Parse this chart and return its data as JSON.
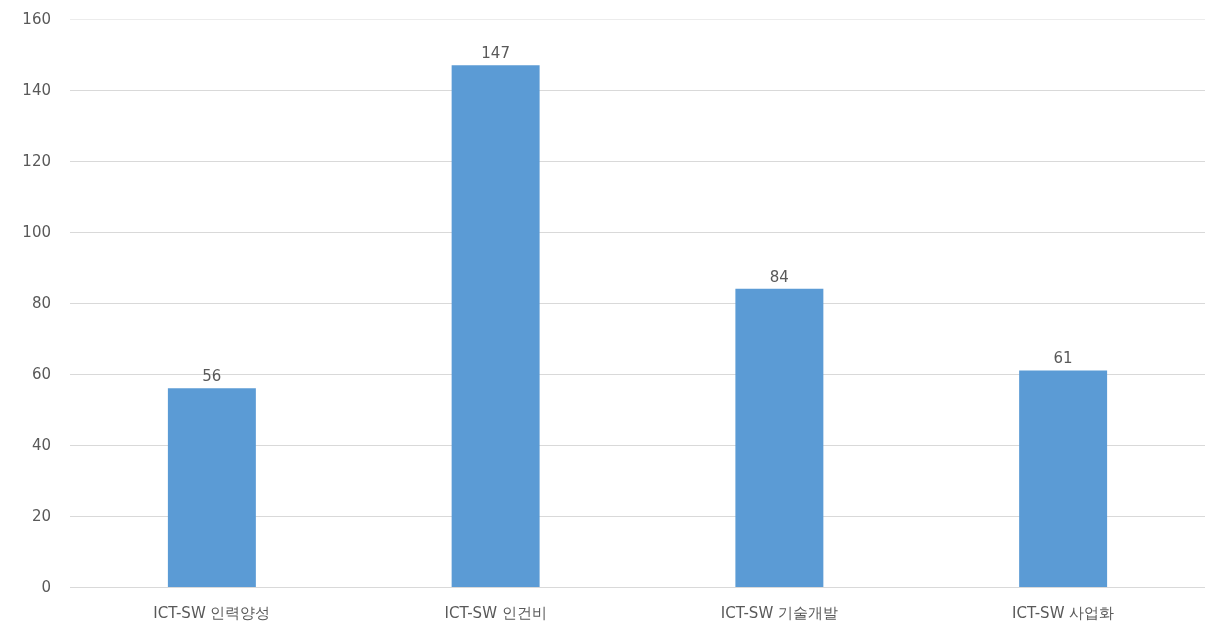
{
  "chart_data": {
    "type": "bar",
    "categories": [
      "ICT-SW 인력양성",
      "ICT-SW 인건비",
      "ICT-SW 기술개발",
      "ICT-SW 사업화"
    ],
    "values": [
      56,
      147,
      84,
      61
    ],
    "color": "#5b9bd5",
    "ylim": [
      0,
      160
    ],
    "yticks": [
      0,
      20,
      40,
      60,
      80,
      100,
      120,
      140,
      160
    ],
    "grid": "y",
    "data_labels": true
  }
}
